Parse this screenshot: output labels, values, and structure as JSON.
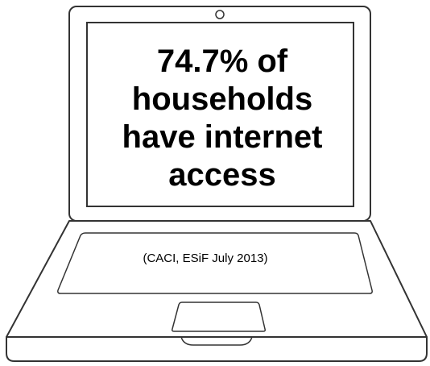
{
  "headline": {
    "line1": "74.7% of",
    "line2": "households",
    "line3": "have internet",
    "line4": "access"
  },
  "source": "(CACI, ESiF July 2013)",
  "colors": {
    "outline": "#333333",
    "text": "#000000",
    "background": "#ffffff"
  }
}
